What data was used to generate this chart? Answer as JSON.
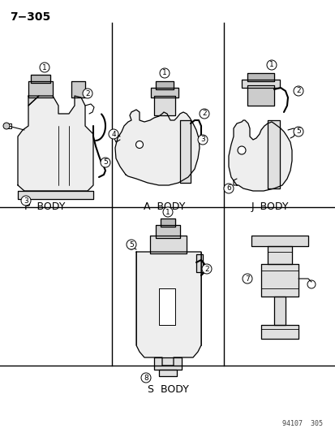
{
  "title": "7−305",
  "background_color": "#ffffff",
  "labels": {
    "p_body": "P  BODY",
    "a_body": "A  BODY",
    "j_body": "J  BODY",
    "s_body": "S  BODY"
  },
  "footer": "94107  305",
  "col1": 138,
  "col2": 276,
  "row1": 255,
  "row2": 450
}
